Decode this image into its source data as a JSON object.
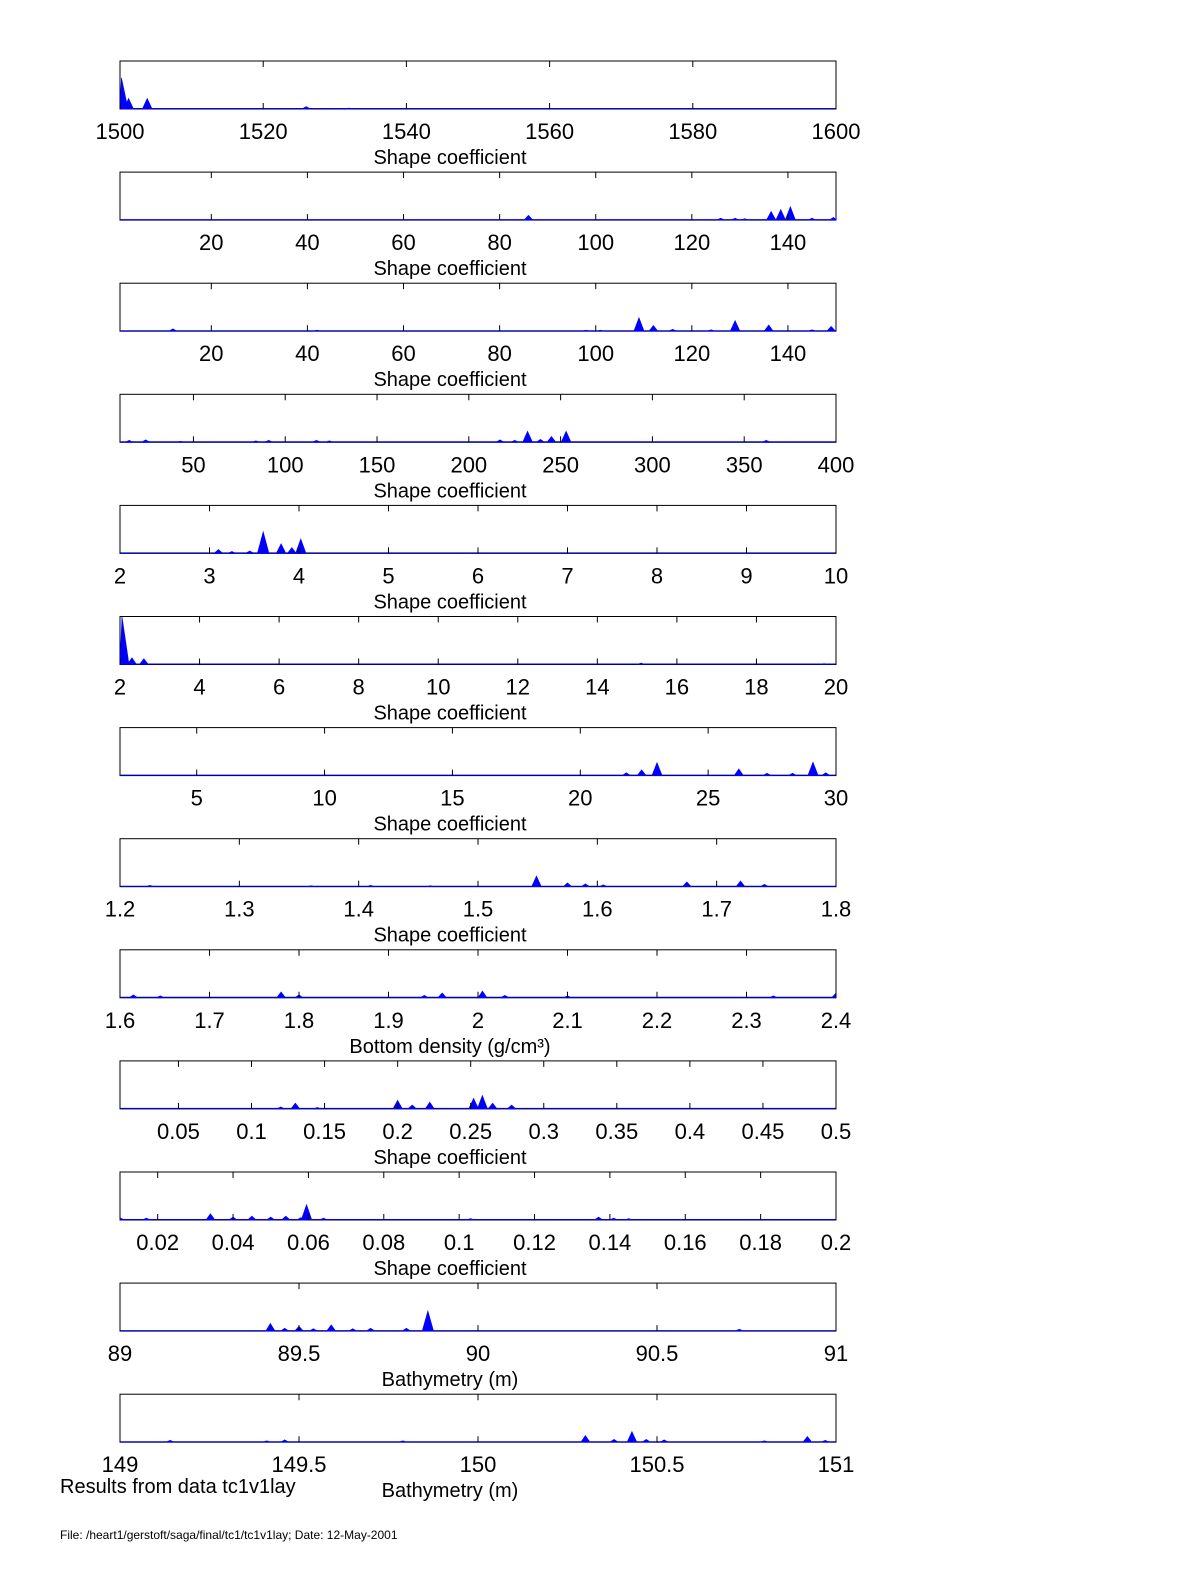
{
  "footer": {
    "results_note": "Results from data tc1v1lay",
    "file_note": "File: /heart1/gerstoft/saga/final/tc1/tc1v1lay; Date: 12-May-2001"
  },
  "chart_data": [
    {
      "type": "area",
      "xlabel": "Shape coefficient",
      "xlim": [
        1500,
        1600
      ],
      "ylim": [
        0,
        1
      ],
      "grid": false,
      "xticks": [
        1500,
        1520,
        1540,
        1560,
        1580,
        1600
      ],
      "color": "#0000ff",
      "peaks": [
        [
          1500.2,
          0.65
        ],
        [
          1501.2,
          0.22
        ],
        [
          1503.8,
          0.22
        ],
        [
          1526,
          0.05
        ],
        [
          1532,
          0.02
        ]
      ]
    },
    {
      "type": "area",
      "xlabel": "Shape coefficient",
      "xlim": [
        1,
        150
      ],
      "ylim": [
        0,
        1
      ],
      "grid": false,
      "xticks": [
        20,
        40,
        60,
        80,
        100,
        120,
        140
      ],
      "color": "#0000ff",
      "peaks": [
        [
          86,
          0.1
        ],
        [
          126,
          0.04
        ],
        [
          129,
          0.04
        ],
        [
          131,
          0.03
        ],
        [
          136.5,
          0.18
        ],
        [
          138.5,
          0.22
        ],
        [
          140.5,
          0.28
        ],
        [
          145,
          0.04
        ],
        [
          149.5,
          0.06
        ]
      ]
    },
    {
      "type": "area",
      "xlabel": "Shape coefficient",
      "xlim": [
        1,
        150
      ],
      "ylim": [
        0,
        1
      ],
      "grid": false,
      "xticks": [
        20,
        40,
        60,
        80,
        100,
        120,
        140
      ],
      "color": "#0000ff",
      "peaks": [
        [
          12,
          0.05
        ],
        [
          42,
          0.02
        ],
        [
          98,
          0.02
        ],
        [
          101,
          0.02
        ],
        [
          109,
          0.28
        ],
        [
          112,
          0.12
        ],
        [
          116,
          0.04
        ],
        [
          124,
          0.03
        ],
        [
          129,
          0.22
        ],
        [
          136,
          0.13
        ],
        [
          145,
          0.03
        ],
        [
          149,
          0.1
        ]
      ]
    },
    {
      "type": "area",
      "xlabel": "Shape coefficient",
      "xlim": [
        10,
        400
      ],
      "ylim": [
        0,
        1
      ],
      "grid": false,
      "xticks": [
        50,
        100,
        150,
        200,
        250,
        300,
        350,
        400
      ],
      "color": "#0000ff",
      "peaks": [
        [
          15,
          0.04
        ],
        [
          24,
          0.05
        ],
        [
          43,
          0.02
        ],
        [
          84,
          0.03
        ],
        [
          91,
          0.04
        ],
        [
          117,
          0.04
        ],
        [
          124,
          0.03
        ],
        [
          217,
          0.05
        ],
        [
          225,
          0.04
        ],
        [
          232,
          0.23
        ],
        [
          239,
          0.06
        ],
        [
          245,
          0.12
        ],
        [
          253,
          0.23
        ],
        [
          362,
          0.04
        ]
      ]
    },
    {
      "type": "area",
      "xlabel": "Shape coefficient",
      "xlim": [
        2,
        10
      ],
      "ylim": [
        0,
        1
      ],
      "grid": false,
      "xticks": [
        2,
        3,
        4,
        5,
        6,
        7,
        8,
        9,
        10
      ],
      "color": "#0000ff",
      "peaks": [
        [
          3.1,
          0.08
        ],
        [
          3.25,
          0.04
        ],
        [
          3.45,
          0.05
        ],
        [
          3.6,
          0.45
        ],
        [
          3.8,
          0.2
        ],
        [
          3.92,
          0.12
        ],
        [
          4.02,
          0.3
        ]
      ]
    },
    {
      "type": "area",
      "xlabel": "Shape coefficient",
      "xlim": [
        2,
        20
      ],
      "ylim": [
        0,
        1
      ],
      "grid": false,
      "xticks": [
        2,
        4,
        6,
        8,
        10,
        12,
        14,
        16,
        18,
        20
      ],
      "color": "#0000ff",
      "peaks": [
        [
          2.05,
          1.0
        ],
        [
          2.3,
          0.14
        ],
        [
          2.6,
          0.12
        ],
        [
          15.1,
          0.03
        ],
        [
          19.7,
          0.02
        ]
      ]
    },
    {
      "type": "area",
      "xlabel": "Shape coefficient",
      "xlim": [
        2,
        30
      ],
      "ylim": [
        0,
        1
      ],
      "grid": false,
      "xticks": [
        5,
        10,
        15,
        20,
        25,
        30
      ],
      "color": "#0000ff",
      "peaks": [
        [
          21.8,
          0.06
        ],
        [
          22.4,
          0.12
        ],
        [
          23,
          0.27
        ],
        [
          26.2,
          0.14
        ],
        [
          27.3,
          0.05
        ],
        [
          28.3,
          0.05
        ],
        [
          29.1,
          0.28
        ],
        [
          29.6,
          0.06
        ]
      ]
    },
    {
      "type": "area",
      "xlabel": "Shape coefficient",
      "xlim": [
        1.2,
        1.8
      ],
      "ylim": [
        0,
        1
      ],
      "grid": false,
      "xticks": [
        1.2,
        1.3,
        1.4,
        1.5,
        1.6,
        1.7,
        1.8
      ],
      "color": "#0000ff",
      "peaks": [
        [
          1.225,
          0.03
        ],
        [
          1.36,
          0.02
        ],
        [
          1.41,
          0.03
        ],
        [
          1.46,
          0.02
        ],
        [
          1.549,
          0.22
        ],
        [
          1.575,
          0.08
        ],
        [
          1.59,
          0.06
        ],
        [
          1.605,
          0.04
        ],
        [
          1.675,
          0.1
        ],
        [
          1.72,
          0.12
        ],
        [
          1.74,
          0.05
        ]
      ]
    },
    {
      "type": "area",
      "xlabel": "Bottom density (g/cm³)",
      "xlim": [
        1.6,
        2.4
      ],
      "ylim": [
        0,
        1
      ],
      "grid": false,
      "xticks": [
        1.6,
        1.7,
        1.8,
        1.9,
        2,
        2.1,
        2.2,
        2.3,
        2.4
      ],
      "color": "#0000ff",
      "peaks": [
        [
          1.615,
          0.06
        ],
        [
          1.645,
          0.04
        ],
        [
          1.78,
          0.12
        ],
        [
          1.8,
          0.06
        ],
        [
          1.94,
          0.05
        ],
        [
          1.96,
          0.1
        ],
        [
          2.005,
          0.14
        ],
        [
          2.03,
          0.05
        ],
        [
          2.1,
          0.04
        ],
        [
          2.33,
          0.04
        ],
        [
          2.4,
          0.1
        ]
      ]
    },
    {
      "type": "area",
      "xlabel": "Shape coefficient",
      "xlim": [
        0.01,
        0.5
      ],
      "ylim": [
        0,
        1
      ],
      "grid": false,
      "xticks": [
        0.05,
        0.1,
        0.15,
        0.2,
        0.25,
        0.3,
        0.35,
        0.4,
        0.45,
        0.5
      ],
      "color": "#0000ff",
      "peaks": [
        [
          0.12,
          0.04
        ],
        [
          0.13,
          0.12
        ],
        [
          0.145,
          0.03
        ],
        [
          0.2,
          0.18
        ],
        [
          0.21,
          0.08
        ],
        [
          0.222,
          0.14
        ],
        [
          0.252,
          0.22
        ],
        [
          0.258,
          0.28
        ],
        [
          0.265,
          0.12
        ],
        [
          0.278,
          0.08
        ]
      ]
    },
    {
      "type": "area",
      "xlabel": "Shape coefficient",
      "xlim": [
        0.01,
        0.2
      ],
      "ylim": [
        0,
        1
      ],
      "grid": false,
      "xticks": [
        0.02,
        0.04,
        0.06,
        0.08,
        0.1,
        0.12,
        0.14,
        0.16,
        0.18,
        0.2
      ],
      "color": "#0000ff",
      "peaks": [
        [
          0.01,
          0.05
        ],
        [
          0.017,
          0.04
        ],
        [
          0.034,
          0.13
        ],
        [
          0.04,
          0.06
        ],
        [
          0.045,
          0.08
        ],
        [
          0.05,
          0.06
        ],
        [
          0.054,
          0.08
        ],
        [
          0.058,
          0.05
        ],
        [
          0.0595,
          0.32
        ],
        [
          0.064,
          0.04
        ],
        [
          0.103,
          0.03
        ],
        [
          0.137,
          0.06
        ],
        [
          0.141,
          0.04
        ],
        [
          0.145,
          0.03
        ]
      ]
    },
    {
      "type": "area",
      "xlabel": "Bathymetry  (m)",
      "xlim": [
        89,
        91
      ],
      "ylim": [
        0,
        1
      ],
      "grid": false,
      "xticks": [
        89,
        89.5,
        90,
        90.5,
        91
      ],
      "color": "#0000ff",
      "peaks": [
        [
          89.42,
          0.16
        ],
        [
          89.46,
          0.06
        ],
        [
          89.5,
          0.1
        ],
        [
          89.54,
          0.05
        ],
        [
          89.59,
          0.13
        ],
        [
          89.65,
          0.05
        ],
        [
          89.7,
          0.06
        ],
        [
          89.8,
          0.06
        ],
        [
          89.86,
          0.42
        ],
        [
          90.73,
          0.04
        ]
      ]
    },
    {
      "type": "area",
      "xlabel": "Bathymetry  (m)",
      "xlim": [
        149,
        151
      ],
      "ylim": [
        0,
        1
      ],
      "grid": false,
      "xticks": [
        149,
        149.5,
        150,
        150.5,
        151
      ],
      "color": "#0000ff",
      "peaks": [
        [
          149.14,
          0.04
        ],
        [
          149.41,
          0.03
        ],
        [
          149.46,
          0.05
        ],
        [
          149.79,
          0.03
        ],
        [
          150.3,
          0.14
        ],
        [
          150.38,
          0.06
        ],
        [
          150.43,
          0.22
        ],
        [
          150.47,
          0.06
        ],
        [
          150.52,
          0.05
        ],
        [
          150.8,
          0.03
        ],
        [
          150.92,
          0.12
        ],
        [
          150.97,
          0.04
        ]
      ]
    }
  ]
}
